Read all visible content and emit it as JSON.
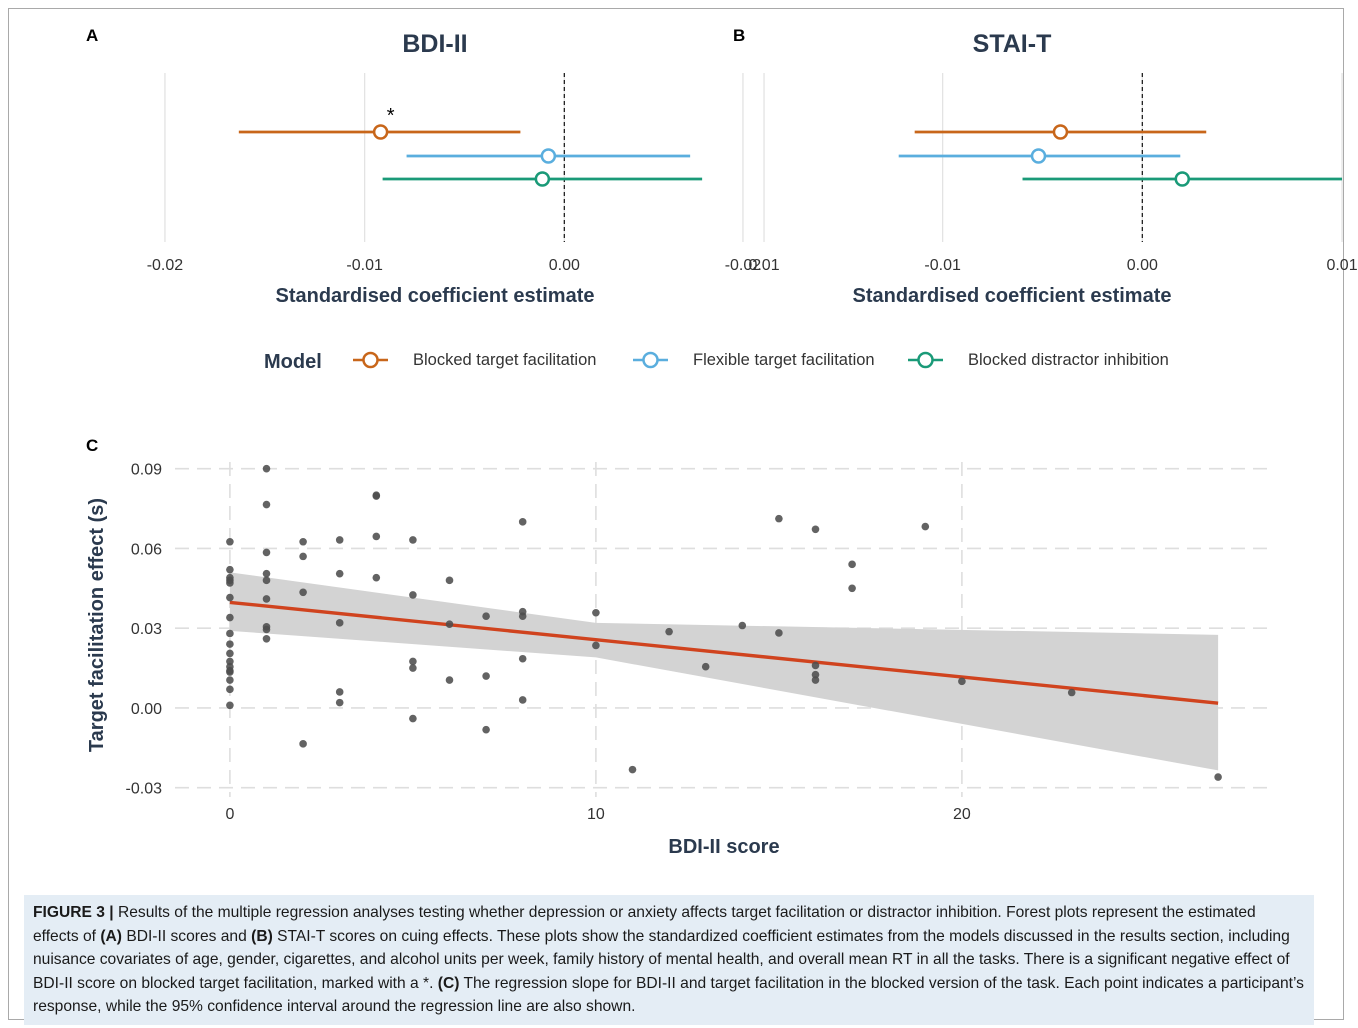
{
  "panels": {
    "a": {
      "letter": "A"
    },
    "b": {
      "letter": "B"
    },
    "c": {
      "letter": "C"
    }
  },
  "legend": {
    "title": "Model",
    "items": [
      {
        "label": "Blocked target facilitation",
        "color": "#c8661a"
      },
      {
        "label": "Flexible target facilitation",
        "color": "#5aaede"
      },
      {
        "label": "Blocked distractor inhibition",
        "color": "#1a9a78"
      }
    ]
  },
  "chart_data": [
    {
      "type": "forest",
      "panel": "A",
      "title": "BDI-II",
      "xlabel": "Standardised coefficient estimate",
      "xlim": [
        -0.022,
        0.011
      ],
      "xticks": [
        -0.02,
        -0.01,
        0.0,
        0.01
      ],
      "xtick_labels": [
        "-0.02",
        "-0.01",
        "0.00",
        "0.01"
      ],
      "reference_line": 0.0,
      "series": [
        {
          "name": "Blocked target facilitation",
          "estimate": -0.0092,
          "lower": -0.0163,
          "upper": -0.0022,
          "annotation": "*"
        },
        {
          "name": "Flexible target facilitation",
          "estimate": -0.0008,
          "lower": -0.0079,
          "upper": 0.0063
        },
        {
          "name": "Blocked distractor inhibition",
          "estimate": -0.0011,
          "lower": -0.0091,
          "upper": 0.0069
        }
      ]
    },
    {
      "type": "forest",
      "panel": "B",
      "title": "STAI-T",
      "xlabel": "Standardised coefficient estimate",
      "xlim": [
        -0.022,
        0.011
      ],
      "xticks": [
        -0.02,
        -0.01,
        0.0,
        0.01
      ],
      "xtick_labels": [
        "-0.02",
        "-0.01",
        "0.00",
        "0.01"
      ],
      "reference_line": 0.0,
      "series": [
        {
          "name": "Blocked target facilitation",
          "estimate": -0.0041,
          "lower": -0.0114,
          "upper": 0.0032
        },
        {
          "name": "Flexible target facilitation",
          "estimate": -0.0052,
          "lower": -0.0122,
          "upper": 0.0019
        },
        {
          "name": "Blocked distractor inhibition",
          "estimate": 0.002,
          "lower": -0.006,
          "upper": 0.01
        }
      ]
    },
    {
      "type": "scatter",
      "panel": "C",
      "xlabel": "BDI-II score",
      "ylabel": "Target facilitation effect (s)",
      "xlim": [
        -1.5,
        28.5
      ],
      "ylim": [
        -0.0335,
        0.0925
      ],
      "xticks": [
        0,
        10,
        20
      ],
      "xtick_labels": [
        "0",
        "10",
        "20"
      ],
      "yticks": [
        -0.03,
        0.0,
        0.03,
        0.06,
        0.09
      ],
      "ytick_labels": [
        "-0.03",
        "0.00",
        "0.03",
        "0.06",
        "0.09"
      ],
      "grid": true,
      "points": [
        [
          0,
          0.0625
        ],
        [
          0,
          0.052
        ],
        [
          0,
          0.049
        ],
        [
          0,
          0.048
        ],
        [
          0,
          0.047
        ],
        [
          0,
          0.0415
        ],
        [
          0,
          0.034
        ],
        [
          0,
          0.028
        ],
        [
          0,
          0.024
        ],
        [
          0,
          0.0205
        ],
        [
          0,
          0.0175
        ],
        [
          0,
          0.0155
        ],
        [
          0,
          0.014
        ],
        [
          0,
          0.0135
        ],
        [
          0,
          0.0105
        ],
        [
          0,
          0.007
        ],
        [
          0,
          0.001
        ],
        [
          1,
          0.09
        ],
        [
          1,
          0.0765
        ],
        [
          1,
          0.0585
        ],
        [
          1,
          0.0505
        ],
        [
          1,
          0.048
        ],
        [
          1,
          0.041
        ],
        [
          1,
          0.0305
        ],
        [
          1,
          0.0295
        ],
        [
          1,
          0.026
        ],
        [
          2,
          0.0625
        ],
        [
          2,
          0.057
        ],
        [
          2,
          0.0435
        ],
        [
          2,
          -0.0135
        ],
        [
          3,
          0.0632
        ],
        [
          3,
          0.0505
        ],
        [
          3,
          0.032
        ],
        [
          3,
          0.006
        ],
        [
          3,
          0.002
        ],
        [
          4,
          0.08
        ],
        [
          4,
          0.0797
        ],
        [
          4,
          0.0645
        ],
        [
          4,
          0.049
        ],
        [
          5,
          0.0632
        ],
        [
          5,
          0.0425
        ],
        [
          5,
          0.0175
        ],
        [
          5,
          0.015
        ],
        [
          5,
          -0.004
        ],
        [
          6,
          0.048
        ],
        [
          6,
          0.0315
        ],
        [
          6,
          0.0105
        ],
        [
          7,
          0.0345
        ],
        [
          7,
          0.012
        ],
        [
          7,
          -0.0082
        ],
        [
          8,
          0.07
        ],
        [
          8,
          0.0362
        ],
        [
          8,
          0.0345
        ],
        [
          8,
          0.0185
        ],
        [
          8,
          0.003
        ],
        [
          10,
          0.0358
        ],
        [
          10,
          0.0235
        ],
        [
          11,
          -0.0232
        ],
        [
          12,
          0.0287
        ],
        [
          13,
          0.0155
        ],
        [
          14,
          0.031
        ],
        [
          15,
          0.0712
        ],
        [
          15,
          0.0282
        ],
        [
          16,
          0.0672
        ],
        [
          16,
          0.016
        ],
        [
          16,
          0.0125
        ],
        [
          16,
          0.0105
        ],
        [
          17,
          0.054
        ],
        [
          17,
          0.045
        ],
        [
          19,
          0.0682
        ],
        [
          20,
          0.01
        ],
        [
          23,
          0.0058
        ],
        [
          27,
          -0.026
        ]
      ],
      "regression": {
        "x": [
          0,
          27
        ],
        "y": [
          0.0397,
          0.0018
        ]
      },
      "confidence_band": {
        "x": [
          0,
          10,
          27
        ],
        "lower": [
          0.029,
          0.019,
          -0.0235
        ],
        "upper": [
          0.051,
          0.032,
          0.0275
        ]
      },
      "colors": {
        "points": "#4d4d4d",
        "line": "#d0431e",
        "band": "#d3d3d3"
      }
    }
  ],
  "caption": {
    "label": "FIGURE 3 |",
    "parts": [
      {
        "text": " Results of the multiple regression analyses testing whether depression or anxiety affects target facilitation or distractor inhibition. Forest plots represent the estimated effects of ",
        "bold": false
      },
      {
        "text": "(A)",
        "bold": true
      },
      {
        "text": " BDI-II scores and ",
        "bold": false
      },
      {
        "text": "(B)",
        "bold": true
      },
      {
        "text": " STAI-T scores on cuing effects. These plots show the standardized coefficient estimates from the models discussed in the results section, including nuisance covariates of age, gender, cigarettes, and alcohol units per week, family history of mental health, and overall mean RT in all the tasks. There is a significant negative effect of BDI-II score on blocked target facilitation, marked with a *. ",
        "bold": false
      },
      {
        "text": "(C)",
        "bold": true
      },
      {
        "text": " The regression slope for BDI-II and target facilitation in the blocked version of the task. Each point indicates a participant’s response, while the 95% confidence interval around the regression line are also shown.",
        "bold": false
      }
    ]
  }
}
